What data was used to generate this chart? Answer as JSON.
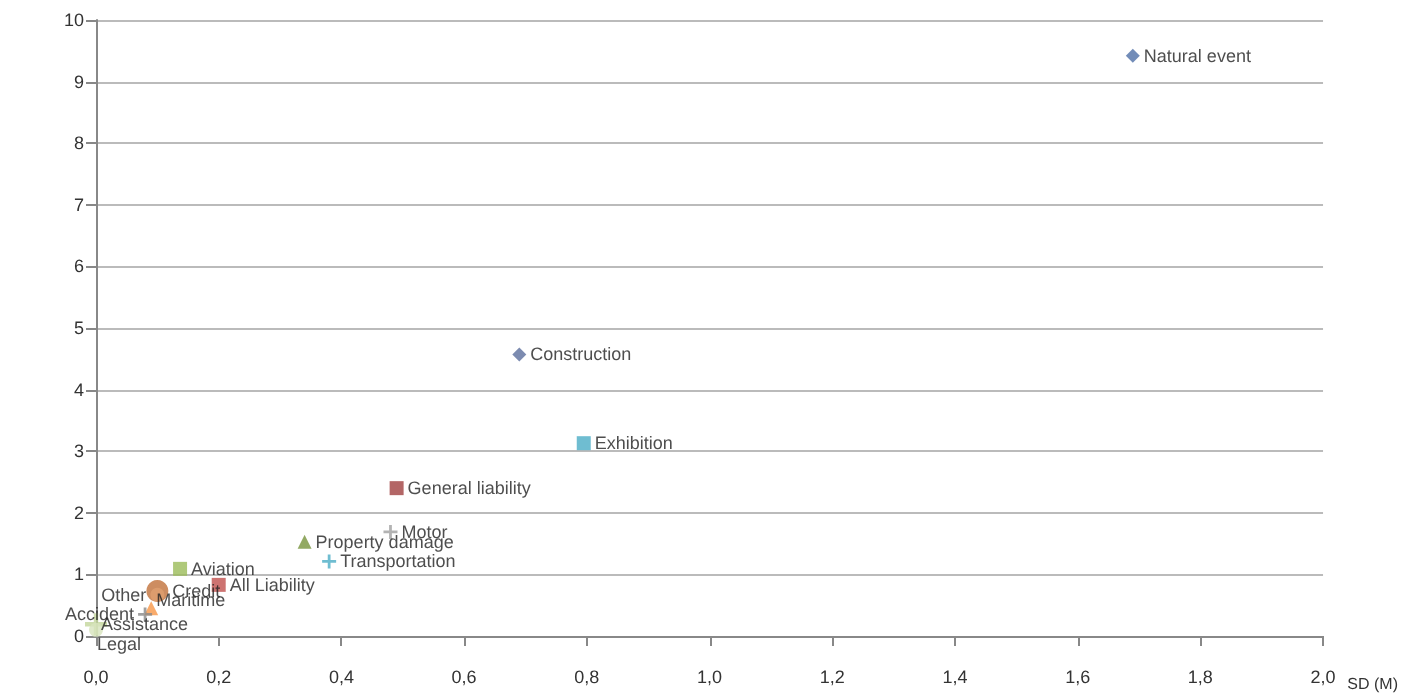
{
  "chart_data": {
    "type": "scatter",
    "xlabel": "SD (M)",
    "grid": "y",
    "legend": false,
    "xlim": [
      0,
      2
    ],
    "ylim": [
      0,
      10
    ],
    "xticks": [
      {
        "value": 0,
        "label": "0,0"
      },
      {
        "value": 0.2,
        "label": "0,2"
      },
      {
        "value": 0.4,
        "label": "0,4"
      },
      {
        "value": 0.6,
        "label": "0,6"
      },
      {
        "value": 0.8,
        "label": "0,8"
      },
      {
        "value": 1,
        "label": "1,0"
      },
      {
        "value": 1.2,
        "label": "1,2"
      },
      {
        "value": 1.4,
        "label": "1,4"
      },
      {
        "value": 1.6,
        "label": "1,6"
      },
      {
        "value": 1.8,
        "label": "1,8"
      },
      {
        "value": 2,
        "label": "2,0"
      }
    ],
    "yticks": [
      0,
      1,
      2,
      3,
      4,
      5,
      6,
      7,
      8,
      9,
      10
    ],
    "series": [
      {
        "name": "Natural event",
        "color": "#4f6fa6",
        "marker": "diamond",
        "x": [
          1.69
        ],
        "values": [
          9.42
        ]
      },
      {
        "name": "Construction",
        "color": "#5b6e9c",
        "marker": "diamond",
        "x": [
          0.69
        ],
        "values": [
          4.57
        ]
      },
      {
        "name": "Exhibition",
        "color": "#4bacc6",
        "marker": "square",
        "x": [
          0.795
        ],
        "values": [
          3.13
        ]
      },
      {
        "name": "General liability",
        "color": "#a04040",
        "marker": "square",
        "x": [
          0.49
        ],
        "values": [
          2.4
        ]
      },
      {
        "name": "Motor",
        "color": "#a0a0a0",
        "marker": "cross",
        "x": [
          0.48
        ],
        "values": [
          1.69
        ]
      },
      {
        "name": "Property damage",
        "color": "#77933c",
        "marker": "triangle",
        "x": [
          0.34
        ],
        "values": [
          1.53
        ]
      },
      {
        "name": "Transportation",
        "color": "#4bacc6",
        "marker": "cross",
        "x": [
          0.38
        ],
        "values": [
          1.21
        ]
      },
      {
        "name": "Aviation",
        "color": "#9bbb59",
        "marker": "square",
        "x": [
          0.137
        ],
        "values": [
          1.09
        ]
      },
      {
        "name": "All Liability",
        "color": "#c0504d",
        "marker": "square",
        "x": [
          0.2
        ],
        "values": [
          0.83
        ]
      },
      {
        "name": "Credit",
        "color": "#c0703a",
        "marker": "circle",
        "x": [
          0.1
        ],
        "values": [
          0.73
        ]
      },
      {
        "name": "Other",
        "color": "#e0a070",
        "marker": "circle",
        "x": [
          0.1
        ],
        "values": [
          0.67
        ]
      },
      {
        "name": "Maritime",
        "color": "#f79646",
        "marker": "triangle",
        "x": [
          0.09
        ],
        "values": [
          0.45
        ]
      },
      {
        "name": "Accident",
        "color": "#888888",
        "marker": "cross",
        "x": [
          0.08
        ],
        "values": [
          0.35
        ]
      },
      {
        "name": "Assistance",
        "color": "#c3d69b",
        "marker": "cross",
        "x": [
          0.0
        ],
        "values": [
          0.19
        ]
      },
      {
        "name": "Legal",
        "color": "#d7e4bd",
        "marker": "circle",
        "x": [
          0.0
        ],
        "values": [
          0.1
        ]
      }
    ]
  }
}
